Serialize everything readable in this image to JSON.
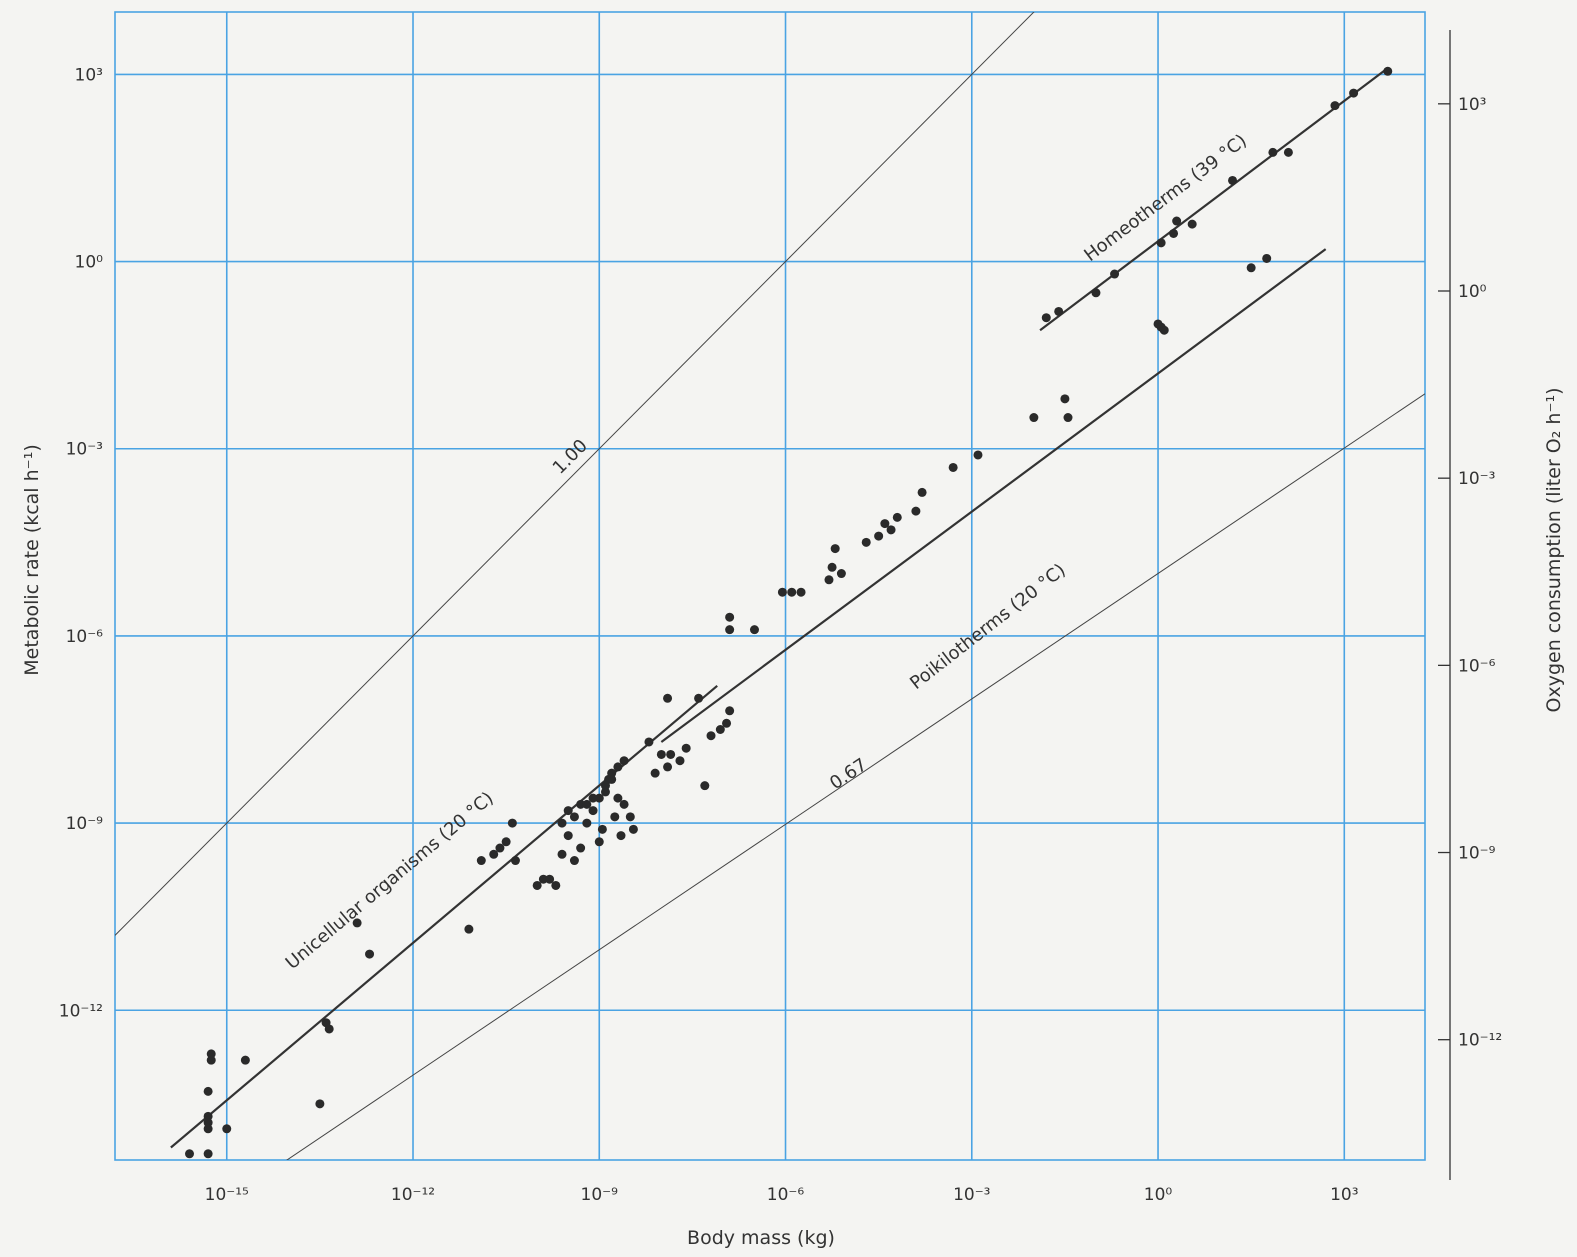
{
  "chart_data": {
    "type": "scatter",
    "xlabel": "Body mass (kg)",
    "ylabel": "Metabolic rate (kcal h⁻¹)",
    "y2label": "Oxygen consumption (liter O₂ h⁻¹)",
    "x_scale": "log",
    "y_scale": "log",
    "xlim_log10": [
      -16.8,
      4.3
    ],
    "ylim_log10": [
      -14.4,
      4.0
    ],
    "x_ticks": [
      {
        "exp": -15,
        "label": "10⁻¹⁵"
      },
      {
        "exp": -12,
        "label": "10⁻¹²"
      },
      {
        "exp": -9,
        "label": "10⁻⁹"
      },
      {
        "exp": -6,
        "label": "10⁻⁶"
      },
      {
        "exp": -3,
        "label": "10⁻³"
      },
      {
        "exp": 0,
        "label": "10⁰"
      },
      {
        "exp": 3,
        "label": "10³"
      }
    ],
    "y_ticks": [
      {
        "exp": 3,
        "label": "10³"
      },
      {
        "exp": 0,
        "label": "10⁰"
      },
      {
        "exp": -3,
        "label": "10⁻³"
      },
      {
        "exp": -6,
        "label": "10⁻⁶"
      },
      {
        "exp": -9,
        "label": "10⁻⁹"
      },
      {
        "exp": -12,
        "label": "10⁻¹²"
      }
    ],
    "y2_ticks": [
      {
        "exp": 3,
        "label": "10³"
      },
      {
        "exp": 0,
        "label": "10⁰"
      },
      {
        "exp": -3,
        "label": "10⁻³"
      },
      {
        "exp": -6,
        "label": "10⁻⁶"
      },
      {
        "exp": -9,
        "label": "10⁻⁹"
      },
      {
        "exp": -12,
        "label": "10⁻¹²"
      }
    ],
    "grid": true,
    "reference_lines": [
      {
        "label": "1.00",
        "slope": 1.0,
        "intercept_log10": 6.0
      },
      {
        "label": "0.67",
        "slope": 0.67,
        "intercept_log10": -5.0
      }
    ],
    "series": [
      {
        "name": "Unicellular organisms (20 °C)",
        "fit": {
          "x_log10": [
            -15.9,
            -7.1
          ],
          "y_log10": [
            -14.2,
            -6.8
          ]
        },
        "points_log10": [
          [
            -15.6,
            -14.3
          ],
          [
            -15.3,
            -13.7
          ],
          [
            -15.3,
            -13.8
          ],
          [
            -15.3,
            -13.9
          ],
          [
            -15.3,
            -14.3
          ],
          [
            -15.3,
            -13.3
          ],
          [
            -15.25,
            -12.7
          ],
          [
            -15.25,
            -12.8
          ],
          [
            -15.0,
            -13.9
          ],
          [
            -14.7,
            -12.8
          ],
          [
            -13.5,
            -13.5
          ],
          [
            -13.4,
            -12.2
          ],
          [
            -13.35,
            -12.3
          ],
          [
            -12.9,
            -10.6
          ],
          [
            -12.7,
            -11.1
          ],
          [
            -11.1,
            -10.7
          ],
          [
            -10.9,
            -9.6
          ],
          [
            -10.7,
            -9.5
          ],
          [
            -10.6,
            -9.4
          ],
          [
            -10.5,
            -9.3
          ],
          [
            -10.4,
            -9.0
          ],
          [
            -10.35,
            -9.6
          ],
          [
            -10.0,
            -10.0
          ],
          [
            -9.9,
            -9.9
          ],
          [
            -9.8,
            -9.9
          ],
          [
            -9.7,
            -10.0
          ],
          [
            -9.6,
            -9.5
          ],
          [
            -9.5,
            -9.2
          ],
          [
            -9.4,
            -9.6
          ],
          [
            -9.3,
            -9.4
          ],
          [
            -9.2,
            -9.0
          ],
          [
            -9.1,
            -8.8
          ],
          [
            -9.0,
            -8.6
          ],
          [
            -8.9,
            -8.5
          ],
          [
            -8.8,
            -8.3
          ],
          [
            -8.7,
            -8.1
          ],
          [
            -8.6,
            -8.0
          ],
          [
            -9.6,
            -9.0
          ],
          [
            -9.5,
            -8.8
          ],
          [
            -9.4,
            -8.9
          ],
          [
            -9.3,
            -8.7
          ],
          [
            -9.2,
            -8.7
          ],
          [
            -9.1,
            -8.6
          ],
          [
            -9.0,
            -9.3
          ],
          [
            -8.95,
            -9.1
          ],
          [
            -8.9,
            -8.4
          ],
          [
            -8.85,
            -8.3
          ],
          [
            -8.8,
            -8.2
          ],
          [
            -8.75,
            -8.9
          ],
          [
            -8.7,
            -8.6
          ],
          [
            -8.65,
            -9.2
          ],
          [
            -8.6,
            -8.7
          ],
          [
            -8.5,
            -8.9
          ],
          [
            -8.45,
            -9.1
          ],
          [
            -8.2,
            -7.7
          ],
          [
            -8.1,
            -8.2
          ],
          [
            -8.0,
            -7.9
          ],
          [
            -7.9,
            -8.1
          ],
          [
            -7.85,
            -7.9
          ],
          [
            -7.7,
            -8.0
          ],
          [
            -7.6,
            -7.8
          ],
          [
            -7.4,
            -7.0
          ],
          [
            -7.3,
            -8.4
          ],
          [
            -7.2,
            -7.6
          ],
          [
            -7.05,
            -7.5
          ],
          [
            -6.95,
            -7.4
          ],
          [
            -6.9,
            -7.2
          ]
        ]
      },
      {
        "name": "Poikilotherms (20 °C)",
        "fit": {
          "x_log10": [
            -8.0,
            2.7
          ],
          "y_log10": [
            -7.7,
            0.2
          ]
        },
        "points_log10": [
          [
            -7.9,
            -7.0
          ],
          [
            -6.9,
            -5.7
          ],
          [
            -6.9,
            -5.9
          ],
          [
            -6.5,
            -5.9
          ],
          [
            -6.05,
            -5.3
          ],
          [
            -5.9,
            -5.3
          ],
          [
            -5.75,
            -5.3
          ],
          [
            -5.3,
            -5.1
          ],
          [
            -5.25,
            -4.9
          ],
          [
            -5.2,
            -4.6
          ],
          [
            -5.1,
            -5.0
          ],
          [
            -4.7,
            -4.5
          ],
          [
            -4.5,
            -4.4
          ],
          [
            -4.4,
            -4.2
          ],
          [
            -4.3,
            -4.3
          ],
          [
            -4.2,
            -4.1
          ],
          [
            -3.9,
            -4.0
          ],
          [
            -3.8,
            -3.7
          ],
          [
            -3.3,
            -3.3
          ],
          [
            -2.9,
            -3.1
          ],
          [
            -2.0,
            -2.5
          ],
          [
            -1.5,
            -2.2
          ],
          [
            -1.45,
            -2.5
          ],
          [
            0.0,
            -1.0
          ],
          [
            0.05,
            -1.05
          ],
          [
            0.1,
            -1.1
          ],
          [
            1.5,
            -0.1
          ],
          [
            1.75,
            0.05
          ]
        ]
      },
      {
        "name": "Homeotherms (39 °C)",
        "fit": {
          "x_log10": [
            -1.9,
            3.7
          ],
          "y_log10": [
            -1.1,
            3.1
          ]
        },
        "points_log10": [
          [
            -1.8,
            -0.9
          ],
          [
            -1.6,
            -0.8
          ],
          [
            -1.0,
            -0.5
          ],
          [
            -0.7,
            -0.2
          ],
          [
            0.05,
            0.3
          ],
          [
            0.25,
            0.45
          ],
          [
            0.3,
            0.65
          ],
          [
            0.55,
            0.6
          ],
          [
            1.2,
            1.3
          ],
          [
            1.85,
            1.75
          ],
          [
            2.1,
            1.75
          ],
          [
            2.85,
            2.5
          ],
          [
            3.15,
            2.7
          ],
          [
            3.7,
            3.05
          ]
        ]
      }
    ]
  },
  "annotations": {
    "ref_high": "1.00",
    "ref_low": "0.67",
    "unicellular": "Unicellular organisms (20 °C)",
    "poikilotherms": "Poikilotherms (20 °C)",
    "homeotherms": "Homeotherms (39 °C)"
  }
}
